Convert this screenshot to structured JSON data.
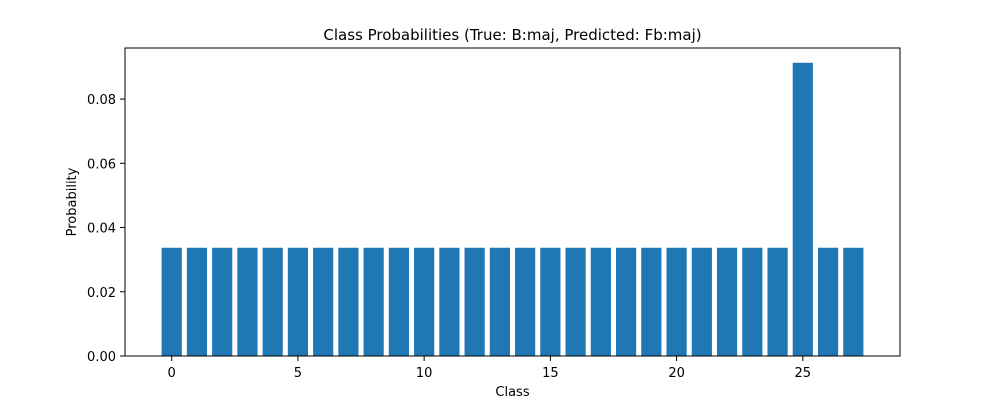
{
  "chart_data": {
    "type": "bar",
    "title": "Class Probabilities (True: B:maj, Predicted: Fb:maj)",
    "xlabel": "Class",
    "ylabel": "Probability",
    "categories": [
      0,
      1,
      2,
      3,
      4,
      5,
      6,
      7,
      8,
      9,
      10,
      11,
      12,
      13,
      14,
      15,
      16,
      17,
      18,
      19,
      20,
      21,
      22,
      23,
      24,
      25,
      26,
      27
    ],
    "values": [
      0.0337,
      0.0337,
      0.0337,
      0.0337,
      0.0337,
      0.0337,
      0.0337,
      0.0337,
      0.0337,
      0.0337,
      0.0337,
      0.0337,
      0.0337,
      0.0337,
      0.0337,
      0.0337,
      0.0337,
      0.0337,
      0.0337,
      0.0337,
      0.0337,
      0.0337,
      0.0337,
      0.0337,
      0.0337,
      0.0913,
      0.0337,
      0.0337
    ],
    "xlim": [
      -1.85,
      28.85
    ],
    "ylim": [
      0,
      0.0959
    ],
    "xticks": [
      0,
      5,
      10,
      15,
      20,
      25
    ],
    "xtick_labels": [
      "0",
      "5",
      "10",
      "15",
      "20",
      "25"
    ],
    "yticks": [
      0,
      0.02,
      0.04,
      0.06,
      0.08
    ],
    "ytick_labels": [
      "0.00",
      "0.02",
      "0.04",
      "0.06",
      "0.08"
    ],
    "bar_color": "#1f77b4",
    "grid": false,
    "legend": false
  }
}
